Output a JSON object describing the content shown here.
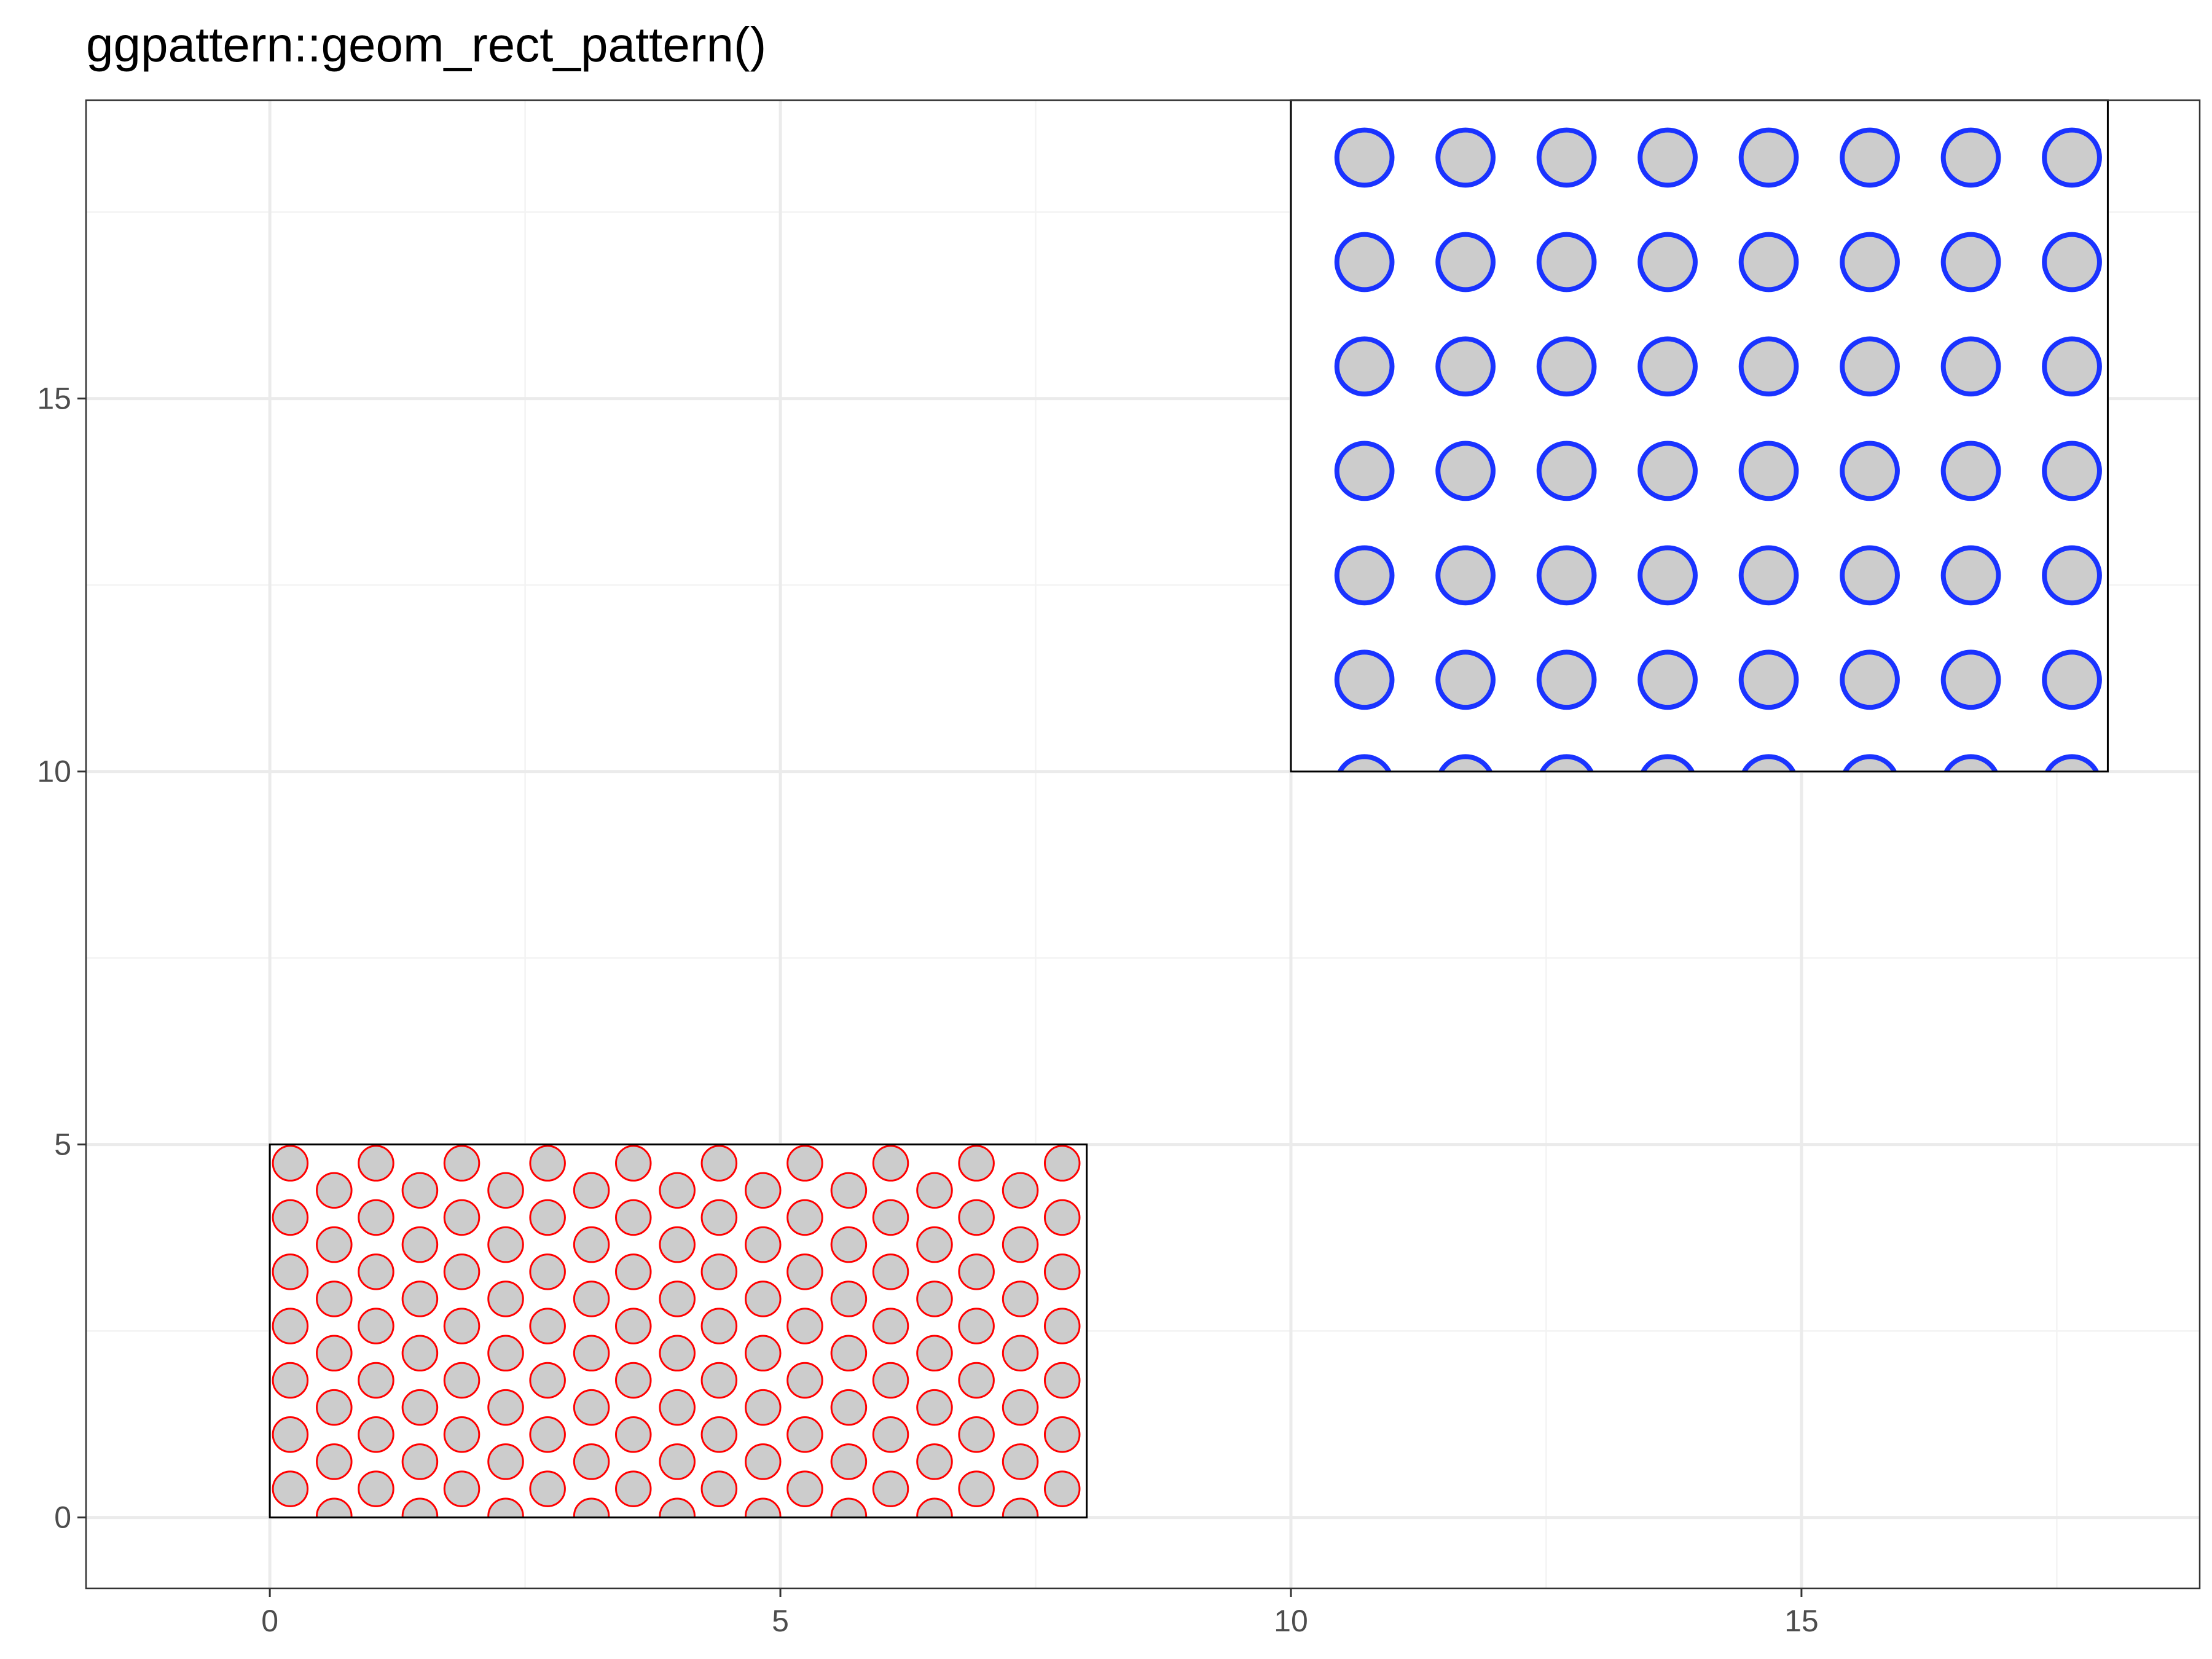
{
  "chart_data": {
    "type": "rect",
    "title": "ggpattern::geom_rect_pattern()",
    "xlabel": "",
    "ylabel": "",
    "xlim": [
      -1.8,
      18.9
    ],
    "ylim": [
      -0.95,
      19.0
    ],
    "x_ticks": [
      0,
      5,
      10,
      15
    ],
    "x_tick_labels": [
      "0",
      "5",
      "10",
      "15"
    ],
    "y_ticks": [
      0,
      5,
      10,
      15
    ],
    "y_tick_labels": [
      "0",
      "5",
      "10",
      "15"
    ],
    "x_minor": [
      2.5,
      7.5,
      12.5,
      17.5
    ],
    "y_minor": [
      2.5,
      7.5,
      12.5,
      17.5
    ],
    "grid": true,
    "colors": {
      "panel_border": "#333333",
      "grid_major": "#ebebeb",
      "grid_minor": "#f3f3f3",
      "tick_text": "#4d4d4d",
      "pattern_fill": "#cccccc"
    },
    "rects": [
      {
        "xmin": 0,
        "xmax": 8,
        "ymin": 0,
        "ymax": 5,
        "fill": "#ffffff",
        "outline": "#000000",
        "pattern": "circle",
        "pattern_color": "#ff0000",
        "pattern_fill": "#cccccc",
        "pattern_weight": "thin",
        "pattern_radius": 0.17,
        "pattern_spacing": 0.84,
        "pattern_stagger": true
      },
      {
        "xmin": 10,
        "xmax": 18,
        "ymin": 10,
        "ymax": 19,
        "fill": "#ffffff",
        "outline": "#000000",
        "pattern": "circle",
        "pattern_color": "#1a33ff",
        "pattern_fill": "#cccccc",
        "pattern_weight": "thick",
        "pattern_radius": 0.27,
        "pattern_spacing": 1.4,
        "pattern_stagger": false
      }
    ]
  }
}
